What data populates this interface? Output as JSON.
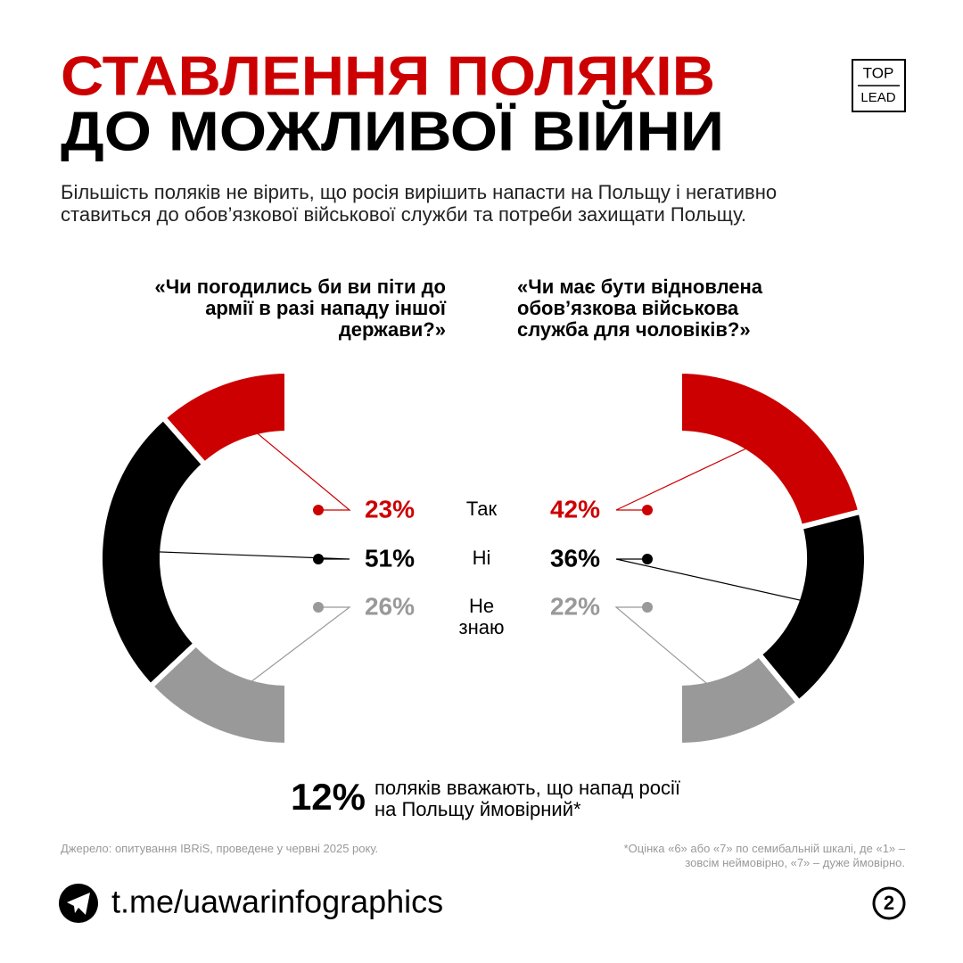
{
  "header": {
    "title_line1": "СТАВЛЕННЯ ПОЛЯКІВ",
    "title_line2": "ДО МОЖЛИВОЇ ВІЙНИ",
    "subtitle": "Більшість поляків не вірить, що росія вирішить напасти на Польщу і негативно ставиться до обов’язкової військової служби та потреби захищати Польщу.",
    "logo_top": "TOP",
    "logo_bottom": "LEAD"
  },
  "chart_data": [
    {
      "type": "donut",
      "title": "«Чи погодились би ви піти до армії в разі нападу іншої держави?»",
      "categories": [
        "Так",
        "Ні",
        "Не знаю"
      ],
      "values": [
        23,
        51,
        26
      ],
      "value_labels": [
        "23%",
        "51%",
        "26%"
      ],
      "colors": [
        "#cc0000",
        "#000000",
        "#999999"
      ],
      "side": "left"
    },
    {
      "type": "donut",
      "title": "«Чи має бути відновлена обов’язкова військова служба для чоловіків?»",
      "values": [
        42,
        36,
        22
      ],
      "value_labels": [
        "42%",
        "36%",
        "22%"
      ],
      "colors": [
        "#cc0000",
        "#000000",
        "#999999"
      ],
      "side": "right"
    }
  ],
  "highlight": {
    "value_label": "12%",
    "text": "поляків вважають, що напад росії на Польщу ймовірний*"
  },
  "footer": {
    "source": "Джерело: опитування IBRiS, проведене у червні 2025 року.",
    "note": "*Оцінка «6» або «7» по семибальній шкалі, де «1» – зовсім неймовірно, «7» – дуже ймовірно.",
    "link": "t.me/uawarinfographics",
    "page": "2"
  }
}
